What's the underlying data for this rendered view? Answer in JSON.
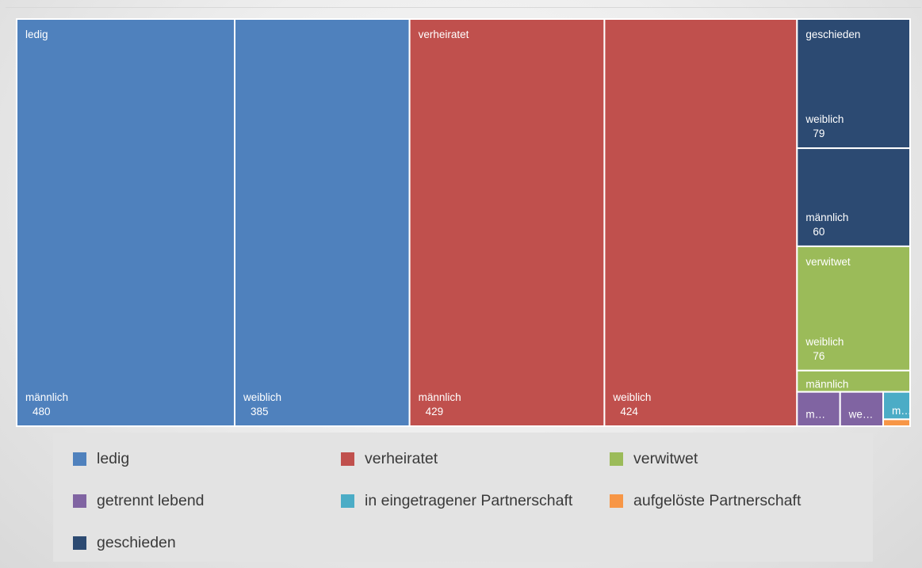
{
  "chart_data": {
    "type": "treemap",
    "groups": [
      {
        "name": "ledig",
        "color": "#4f81bd",
        "children": [
          {
            "label": "männlich",
            "value": 480,
            "shown_value": "480"
          },
          {
            "label": "weiblich",
            "value": 385,
            "shown_value": "385"
          }
        ]
      },
      {
        "name": "verheiratet",
        "color": "#c0504d",
        "children": [
          {
            "label": "männlich",
            "value": 429,
            "shown_value": "429"
          },
          {
            "label": "weiblich",
            "value": 424,
            "shown_value": "424"
          }
        ]
      },
      {
        "name": "geschieden",
        "color": "#2c4a72",
        "children": [
          {
            "label": "weiblich",
            "value": 79,
            "shown_value": "79"
          },
          {
            "label": "männlich",
            "value": 60,
            "shown_value": "60"
          }
        ]
      },
      {
        "name": "verwitwet",
        "color": "#9bbb59",
        "children": [
          {
            "label": "weiblich",
            "value": 76,
            "shown_value": "76"
          },
          {
            "label": "männlich",
            "value": 13
          }
        ]
      },
      {
        "name": "getrennt lebend",
        "color": "#8064a2",
        "children": [
          {
            "label": "m…",
            "value": 8
          },
          {
            "label": "we…",
            "value": 8
          }
        ]
      },
      {
        "name": "in eingetragener Partnerschaft",
        "color": "#4bacc6",
        "children": [
          {
            "label": "m…",
            "value": 4
          }
        ]
      },
      {
        "name": "aufgelöste Partnerschaft",
        "color": "#f79646",
        "children": [
          {
            "label": "",
            "value": 1
          }
        ]
      }
    ],
    "legend": [
      {
        "label": "ledig",
        "color": "#4f81bd"
      },
      {
        "label": "verheiratet",
        "color": "#c0504d"
      },
      {
        "label": "verwitwet",
        "color": "#9bbb59"
      },
      {
        "label": "getrennt lebend",
        "color": "#8064a2"
      },
      {
        "label": "in eingetragener Partnerschaft",
        "color": "#4bacc6"
      },
      {
        "label": "aufgelöste Partnerschaft",
        "color": "#f79646"
      },
      {
        "label": "geschieden",
        "color": "#2c4a72"
      }
    ],
    "legend_placement": "bottom"
  }
}
